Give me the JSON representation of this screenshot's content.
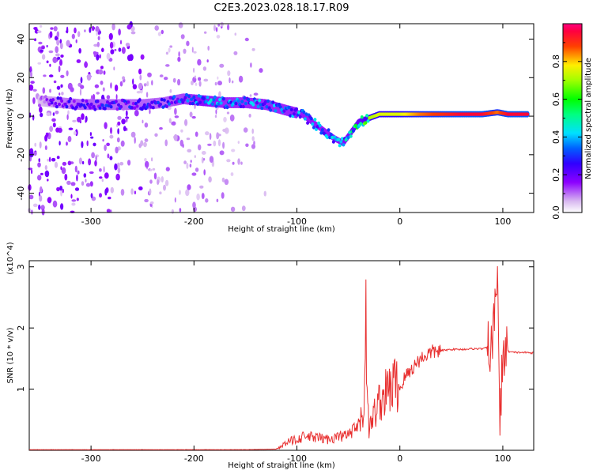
{
  "title": "C2E3.2023.028.18.17.R09",
  "chart_data": [
    {
      "type": "heatmap",
      "xlabel": "Height of straight line (km)",
      "ylabel": "Frequency (Hz)",
      "xlim": [
        -360,
        130
      ],
      "ylim": [
        -50,
        48
      ],
      "x_ticks": [
        -300,
        -200,
        -100,
        0,
        100
      ],
      "y_ticks": [
        -40,
        -20,
        0,
        20,
        40
      ],
      "colorbar": {
        "label": "Normalized spectral amplitude",
        "range": [
          0.0,
          1.0
        ],
        "ticks": [
          0.0,
          0.2,
          0.4,
          0.6,
          0.8
        ],
        "colormap": "rainbow-white-purple-blue-cyan-green-yellow-red-magenta"
      },
      "ridge": [
        {
          "x": -350,
          "y": 8,
          "amp": 0.15
        },
        {
          "x": -330,
          "y": 7,
          "amp": 0.25
        },
        {
          "x": -310,
          "y": 6,
          "amp": 0.3
        },
        {
          "x": -290,
          "y": 6,
          "amp": 0.3
        },
        {
          "x": -270,
          "y": 6,
          "amp": 0.3
        },
        {
          "x": -250,
          "y": 6,
          "amp": 0.3
        },
        {
          "x": -230,
          "y": 7,
          "amp": 0.3
        },
        {
          "x": -210,
          "y": 9,
          "amp": 0.35
        },
        {
          "x": -190,
          "y": 8,
          "amp": 0.45
        },
        {
          "x": -170,
          "y": 7,
          "amp": 0.4
        },
        {
          "x": -150,
          "y": 7,
          "amp": 0.4
        },
        {
          "x": -130,
          "y": 6,
          "amp": 0.4
        },
        {
          "x": -110,
          "y": 3,
          "amp": 0.4
        },
        {
          "x": -95,
          "y": 1,
          "amp": 0.42
        },
        {
          "x": -85,
          "y": -3,
          "amp": 0.42
        },
        {
          "x": -75,
          "y": -7,
          "amp": 0.42
        },
        {
          "x": -65,
          "y": -11,
          "amp": 0.42
        },
        {
          "x": -55,
          "y": -14,
          "amp": 0.45
        },
        {
          "x": -40,
          "y": -3,
          "amp": 0.55
        },
        {
          "x": -30,
          "y": -1,
          "amp": 0.7
        },
        {
          "x": -20,
          "y": 1,
          "amp": 0.75
        },
        {
          "x": -10,
          "y": 1,
          "amp": 0.75
        },
        {
          "x": 0,
          "y": 1,
          "amp": 0.75
        },
        {
          "x": 20,
          "y": 1,
          "amp": 0.85
        },
        {
          "x": 40,
          "y": 1,
          "amp": 0.9
        },
        {
          "x": 60,
          "y": 1,
          "amp": 0.95
        },
        {
          "x": 80,
          "y": 1,
          "amp": 0.95
        },
        {
          "x": 95,
          "y": 2,
          "amp": 0.85
        },
        {
          "x": 105,
          "y": 1,
          "amp": 0.95
        },
        {
          "x": 125,
          "y": 1,
          "amp": 0.95
        }
      ]
    },
    {
      "type": "line",
      "xlabel": "Height of straight line (km)",
      "ylabel": "SNR (10 * v/v)",
      "y_multiplier": "(x10^4)",
      "xlim": [
        -360,
        130
      ],
      "ylim": [
        0,
        3.1
      ],
      "x_ticks": [
        -300,
        -200,
        -100,
        0,
        100
      ],
      "y_ticks": [
        1,
        2,
        3
      ],
      "color": "#e83030",
      "series": [
        {
          "x": [
            -360,
            -300,
            -200,
            -150,
            -120,
            -110,
            -100,
            -90,
            -80,
            -70,
            -60,
            -50,
            -45,
            -40,
            -35,
            -33,
            -31,
            -30,
            -27,
            -25,
            -20,
            -15,
            -10,
            -5,
            0,
            5,
            10,
            15,
            20,
            25,
            30,
            35,
            40,
            50,
            60,
            70,
            80,
            85,
            90,
            93,
            95,
            97,
            100,
            105,
            110,
            120,
            130
          ],
          "y": [
            0.01,
            0.01,
            0.01,
            0.01,
            0.02,
            0.12,
            0.2,
            0.22,
            0.2,
            0.18,
            0.22,
            0.25,
            0.3,
            0.4,
            0.6,
            2.25,
            0.7,
            0.3,
            0.5,
            0.6,
            0.8,
            0.9,
            1.0,
            1.1,
            1.0,
            1.2,
            1.3,
            1.4,
            1.5,
            1.55,
            1.6,
            1.62,
            1.63,
            1.65,
            1.65,
            1.66,
            1.66,
            1.68,
            1.7,
            2.5,
            3.1,
            0.3,
            1.6,
            1.62,
            1.6,
            1.6,
            1.59
          ]
        }
      ]
    }
  ]
}
